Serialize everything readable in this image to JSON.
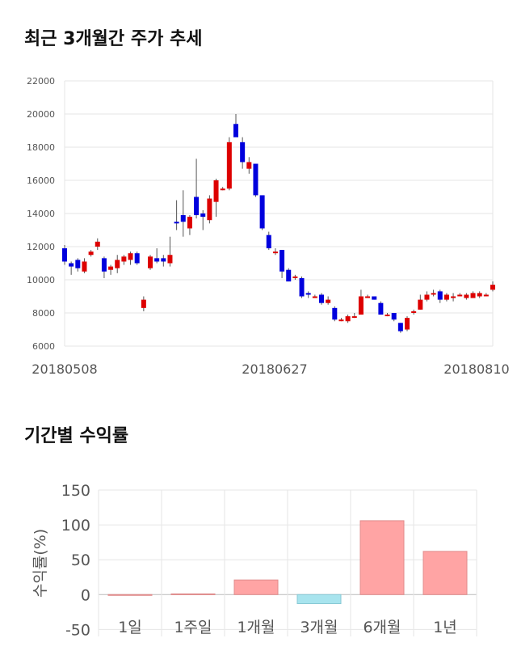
{
  "sections": {
    "price_title": "최근 3개월간 주가 추세",
    "return_title": "기간별 수익률"
  },
  "chart_data": [
    {
      "type": "candlestick",
      "title": "최근 3개월간 주가 추세",
      "ylim": [
        6000,
        22000
      ],
      "y_ticks": [
        "22000",
        "20000",
        "18000",
        "16000",
        "14000",
        "12000",
        "10000",
        "8000",
        "6000"
      ],
      "x_tick_labels": [
        "20180508",
        "20180627",
        "20180810"
      ],
      "grid": true,
      "colors": {
        "up": "#dd0000",
        "down": "#0000dd",
        "wick": "#555555"
      },
      "candles": [
        {
          "o": 11900,
          "h": 12100,
          "l": 10900,
          "c": 11100
        },
        {
          "o": 11000,
          "h": 11100,
          "l": 10300,
          "c": 10800
        },
        {
          "o": 11200,
          "h": 11300,
          "l": 10500,
          "c": 10700
        },
        {
          "o": 10500,
          "h": 11300,
          "l": 10400,
          "c": 11100
        },
        {
          "o": 11500,
          "h": 11800,
          "l": 11400,
          "c": 11700
        },
        {
          "o": 12000,
          "h": 12500,
          "l": 11800,
          "c": 12300
        },
        {
          "o": 11300,
          "h": 11400,
          "l": 10100,
          "c": 10500
        },
        {
          "o": 10600,
          "h": 10900,
          "l": 10300,
          "c": 10800
        },
        {
          "o": 10700,
          "h": 11500,
          "l": 10400,
          "c": 11200
        },
        {
          "o": 11100,
          "h": 11500,
          "l": 10900,
          "c": 11400
        },
        {
          "o": 11200,
          "h": 11700,
          "l": 10900,
          "c": 11600
        },
        {
          "o": 11600,
          "h": 11700,
          "l": 10900,
          "c": 11000
        },
        {
          "o": 8300,
          "h": 9000,
          "l": 8100,
          "c": 8800
        },
        {
          "o": 10700,
          "h": 11500,
          "l": 10600,
          "c": 11400
        },
        {
          "o": 11300,
          "h": 11900,
          "l": 11000,
          "c": 11100
        },
        {
          "o": 11300,
          "h": 11500,
          "l": 10800,
          "c": 11100
        },
        {
          "o": 11000,
          "h": 12600,
          "l": 10800,
          "c": 11500
        },
        {
          "o": 13500,
          "h": 14800,
          "l": 13000,
          "c": 13400
        },
        {
          "o": 13900,
          "h": 15400,
          "l": 12600,
          "c": 13500
        },
        {
          "o": 13100,
          "h": 13900,
          "l": 12700,
          "c": 13800
        },
        {
          "o": 15000,
          "h": 17300,
          "l": 13700,
          "c": 13900
        },
        {
          "o": 14000,
          "h": 14200,
          "l": 13000,
          "c": 13800
        },
        {
          "o": 13600,
          "h": 15100,
          "l": 13400,
          "c": 14900
        },
        {
          "o": 14700,
          "h": 16100,
          "l": 13800,
          "c": 16000
        },
        {
          "o": 15500,
          "h": 15600,
          "l": 15400,
          "c": 15500
        },
        {
          "o": 15500,
          "h": 18600,
          "l": 15400,
          "c": 18300
        },
        {
          "o": 19400,
          "h": 20000,
          "l": 18700,
          "c": 18600
        },
        {
          "o": 18300,
          "h": 18600,
          "l": 16700,
          "c": 17100
        },
        {
          "o": 16700,
          "h": 17400,
          "l": 16400,
          "c": 17100
        },
        {
          "o": 17000,
          "h": 17000,
          "l": 15000,
          "c": 15100
        },
        {
          "o": 15100,
          "h": 15100,
          "l": 13000,
          "c": 13100
        },
        {
          "o": 12700,
          "h": 12900,
          "l": 11800,
          "c": 11900
        },
        {
          "o": 11700,
          "h": 11900,
          "l": 11500,
          "c": 11700
        },
        {
          "o": 11800,
          "h": 11800,
          "l": 10100,
          "c": 10500
        },
        {
          "o": 10600,
          "h": 10700,
          "l": 9900,
          "c": 9900
        },
        {
          "o": 10200,
          "h": 10300,
          "l": 10000,
          "c": 10200
        },
        {
          "o": 10100,
          "h": 10200,
          "l": 8900,
          "c": 9000
        },
        {
          "o": 9200,
          "h": 9300,
          "l": 8900,
          "c": 9100
        },
        {
          "o": 9000,
          "h": 9100,
          "l": 8900,
          "c": 9000
        },
        {
          "o": 9100,
          "h": 9200,
          "l": 8500,
          "c": 8600
        },
        {
          "o": 8600,
          "h": 9000,
          "l": 8500,
          "c": 8800
        },
        {
          "o": 8300,
          "h": 8400,
          "l": 7500,
          "c": 7600
        },
        {
          "o": 7600,
          "h": 7700,
          "l": 7500,
          "c": 7600
        },
        {
          "o": 7500,
          "h": 7900,
          "l": 7400,
          "c": 7800
        },
        {
          "o": 7800,
          "h": 8000,
          "l": 7700,
          "c": 7800
        },
        {
          "o": 7900,
          "h": 9400,
          "l": 7900,
          "c": 9000
        },
        {
          "o": 9000,
          "h": 9100,
          "l": 8900,
          "c": 9000
        },
        {
          "o": 9000,
          "h": 9000,
          "l": 8800,
          "c": 8800
        },
        {
          "o": 8600,
          "h": 8700,
          "l": 7900,
          "c": 7900
        },
        {
          "o": 7900,
          "h": 8000,
          "l": 7800,
          "c": 7900
        },
        {
          "o": 8000,
          "h": 8000,
          "l": 7500,
          "c": 7600
        },
        {
          "o": 7400,
          "h": 7400,
          "l": 6800,
          "c": 6900
        },
        {
          "o": 7000,
          "h": 7800,
          "l": 6900,
          "c": 7700
        },
        {
          "o": 8000,
          "h": 8200,
          "l": 7900,
          "c": 8100
        },
        {
          "o": 8200,
          "h": 9100,
          "l": 8200,
          "c": 8800
        },
        {
          "o": 8800,
          "h": 9300,
          "l": 8700,
          "c": 9100
        },
        {
          "o": 9200,
          "h": 9400,
          "l": 9000,
          "c": 9200
        },
        {
          "o": 9300,
          "h": 9400,
          "l": 8600,
          "c": 8800
        },
        {
          "o": 8800,
          "h": 9200,
          "l": 8700,
          "c": 9100
        },
        {
          "o": 9000,
          "h": 9200,
          "l": 8700,
          "c": 9000
        },
        {
          "o": 9100,
          "h": 9200,
          "l": 9000,
          "c": 9100
        },
        {
          "o": 8900,
          "h": 9200,
          "l": 8800,
          "c": 9100
        },
        {
          "o": 8900,
          "h": 9300,
          "l": 8900,
          "c": 9200
        },
        {
          "o": 9000,
          "h": 9300,
          "l": 8900,
          "c": 9200
        },
        {
          "o": 9100,
          "h": 9200,
          "l": 9000,
          "c": 9100
        },
        {
          "o": 9400,
          "h": 9900,
          "l": 9300,
          "c": 9700
        }
      ]
    },
    {
      "type": "bar",
      "title": "기간별 수익률",
      "ylabel": "수익률(%)",
      "ylim": [
        -60,
        150
      ],
      "y_ticks": [
        "150",
        "100",
        "50",
        "0",
        "-50"
      ],
      "categories": [
        "1일",
        "1주일",
        "1개월",
        "3개월",
        "6개월",
        "1년"
      ],
      "values": [
        0,
        1,
        21,
        -13,
        106,
        62
      ],
      "grid": true,
      "colors": {
        "positive": "#ffa4a4",
        "positive_edge": "#e08c8c",
        "negative": "#a8e4ee",
        "negative_edge": "#88c8d4"
      }
    }
  ]
}
